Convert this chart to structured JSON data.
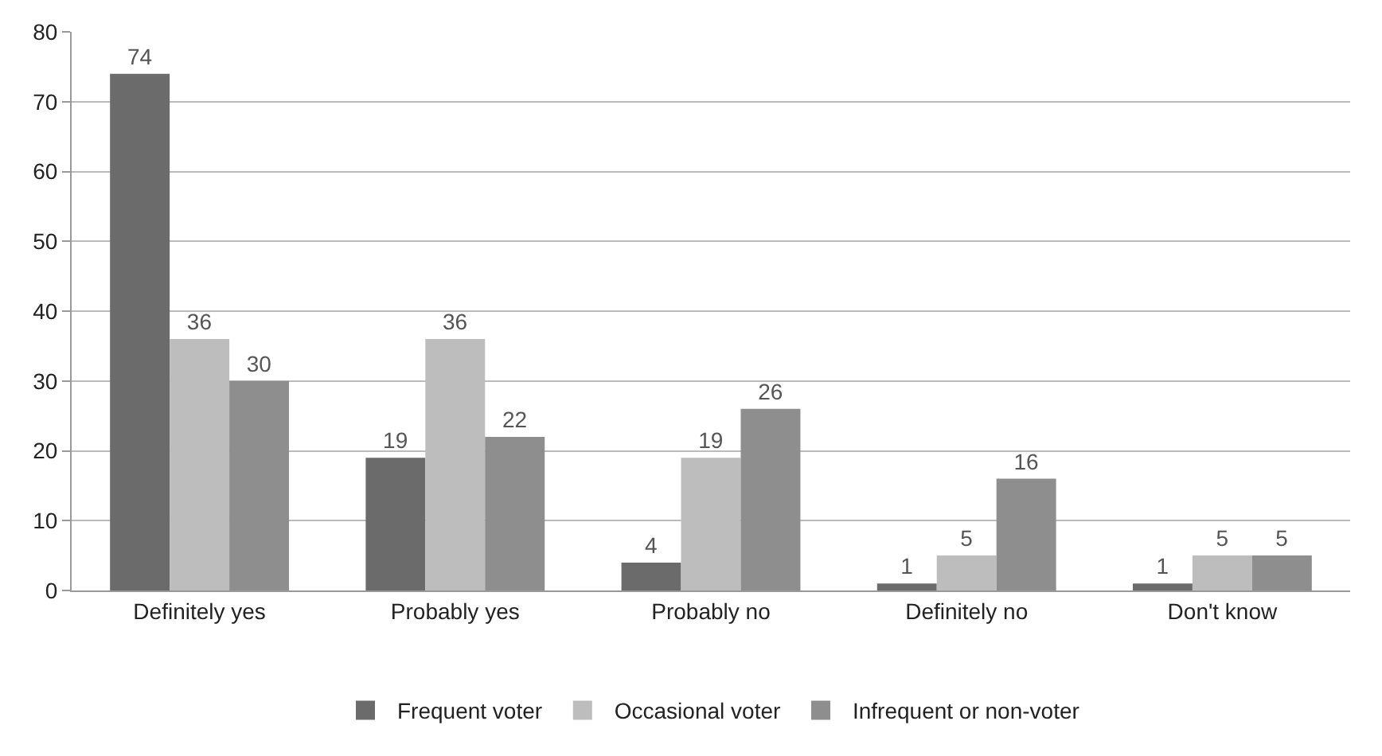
{
  "chart_data": {
    "type": "bar",
    "categories": [
      "Definitely yes",
      "Probably yes",
      "Probably no",
      "Definitely no",
      "Don't know"
    ],
    "series": [
      {
        "name": "Frequent voter",
        "color": "#6b6b6b",
        "values": [
          74,
          19,
          4,
          1,
          1
        ]
      },
      {
        "name": "Occasional voter",
        "color": "#bdbdbd",
        "values": [
          36,
          36,
          19,
          5,
          5
        ]
      },
      {
        "name": "Infrequent or non-voter",
        "color": "#8e8e8e",
        "values": [
          30,
          22,
          26,
          16,
          5
        ]
      }
    ],
    "ylim": [
      0,
      80
    ],
    "yticks": [
      0,
      10,
      20,
      30,
      40,
      50,
      60,
      70,
      80
    ],
    "grid": "y",
    "legend": "bottom",
    "data_labels": true
  }
}
